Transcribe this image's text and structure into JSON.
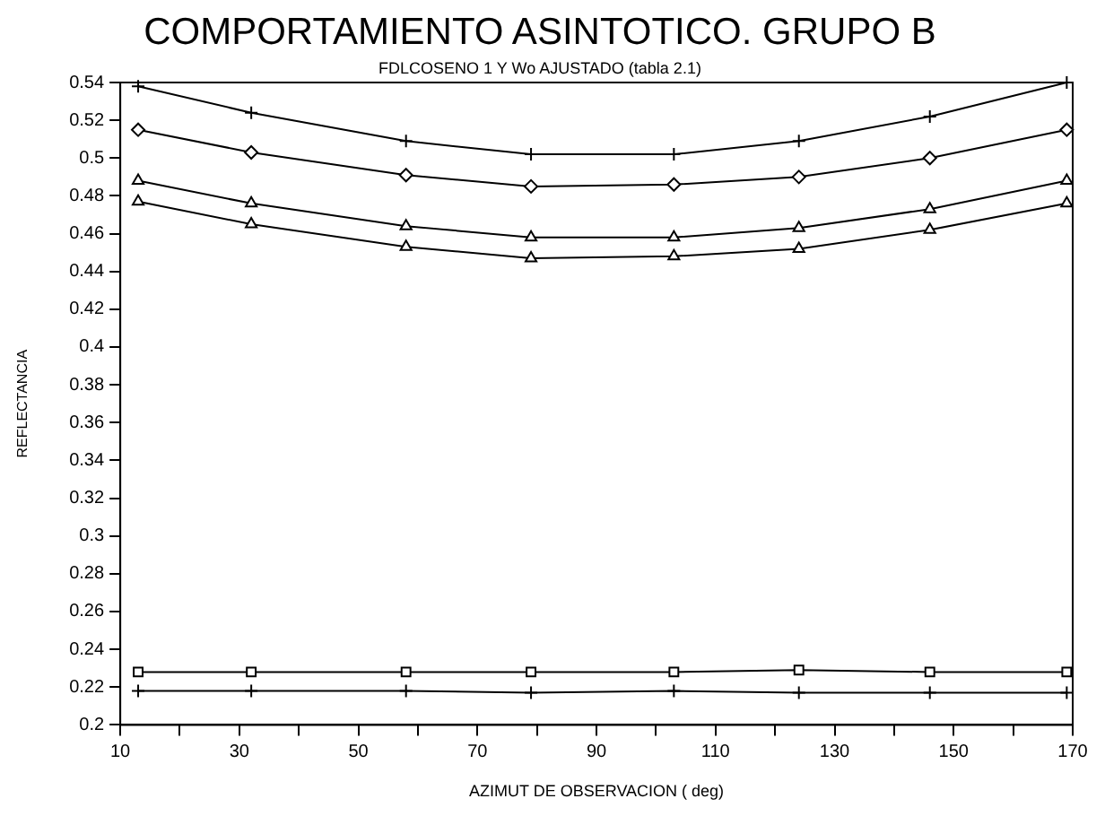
{
  "chart_data": {
    "type": "line",
    "title": "COMPORTAMIENTO ASINTOTICO. GRUPO B",
    "subtitle": "FDLCOSENO 1 Y Wo AJUSTADO (tabla 2.1)",
    "xlabel": "AZIMUT DE OBSERVACION ( deg)",
    "ylabel": "REFLECTANCIA",
    "x": [
      13,
      32,
      58,
      79,
      103,
      124,
      146,
      169
    ],
    "series": [
      {
        "color": "#000000",
        "marker": "cross",
        "values": [
          0.538,
          0.524,
          0.509,
          0.502,
          0.502,
          0.509,
          0.522,
          0.54
        ]
      },
      {
        "color": "#000000",
        "marker": "diamond",
        "values": [
          0.515,
          0.503,
          0.491,
          0.485,
          0.486,
          0.49,
          0.5,
          0.515
        ]
      },
      {
        "color": "#000000",
        "marker": "triangle",
        "values": [
          0.488,
          0.476,
          0.464,
          0.458,
          0.458,
          0.463,
          0.473,
          0.488
        ]
      },
      {
        "color": "#000000",
        "marker": "triangle",
        "values": [
          0.477,
          0.465,
          0.453,
          0.447,
          0.448,
          0.452,
          0.462,
          0.476
        ]
      },
      {
        "color": "#000000",
        "marker": "square",
        "values": [
          0.228,
          0.228,
          0.228,
          0.228,
          0.228,
          0.229,
          0.228,
          0.228
        ]
      },
      {
        "color": "#000000",
        "marker": "cross",
        "values": [
          0.218,
          0.218,
          0.218,
          0.217,
          0.218,
          0.217,
          0.217,
          0.217
        ]
      }
    ],
    "xlim": [
      10,
      170
    ],
    "xticks": [
      10,
      {
        "value": 20,
        "label": null
      },
      30,
      {
        "value": 40,
        "label": null
      },
      50,
      {
        "value": 60,
        "label": null
      },
      70,
      {
        "value": 80,
        "label": null
      },
      90,
      {
        "value": 100,
        "label": null
      },
      110,
      {
        "value": 120,
        "label": null
      },
      130,
      {
        "value": 140,
        "label": null
      },
      150,
      {
        "value": 160,
        "label": null
      },
      170
    ],
    "ylim": [
      0.2,
      0.54
    ],
    "yticks": [
      0.2,
      0.22,
      0.24,
      0.26,
      0.28,
      0.3,
      0.32,
      0.34,
      0.36,
      0.38,
      0.4,
      0.42,
      0.44,
      0.46,
      0.48,
      0.5,
      0.52,
      0.54
    ],
    "grid": false,
    "legend": false,
    "line_style": "solid"
  }
}
